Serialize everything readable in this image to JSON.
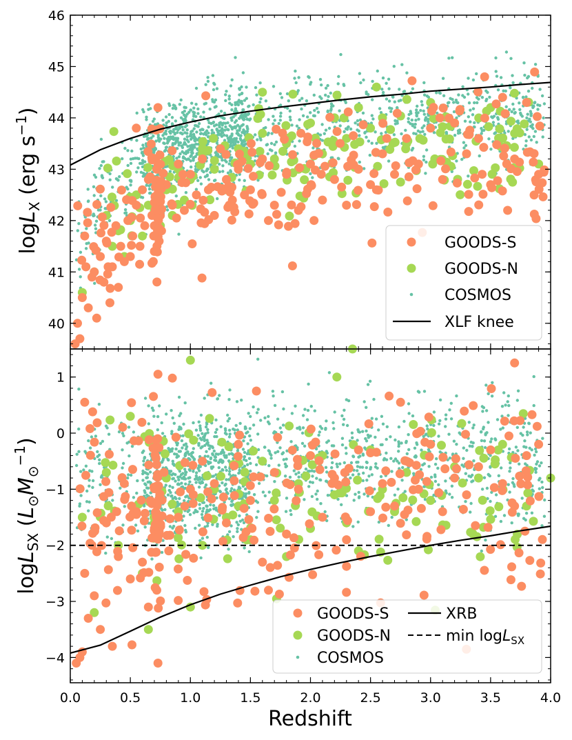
{
  "colors": {
    "goods_s": "#fc8d62",
    "goods_n": "#a6d854",
    "cosmos": "#66c2a5",
    "line": "#000000"
  },
  "shared_xlabel": "Redshift",
  "chart_data": [
    {
      "type": "scatter",
      "panel": "top",
      "ylabel_text": "log",
      "ylabel_italic": "L",
      "ylabel_sub": "X",
      "ylabel_units": " (erg s",
      "ylabel_units_sup": "−1",
      "ylabel_units_end": ")",
      "xlim": [
        0.0,
        4.0
      ],
      "ylim": [
        39.5,
        46.0
      ],
      "xticks": [
        "0.0",
        "0.5",
        "1.0",
        "1.5",
        "2.0",
        "2.5",
        "3.0",
        "3.5",
        "4.0"
      ],
      "yticks": [
        "40",
        "41",
        "42",
        "43",
        "44",
        "45",
        "46"
      ],
      "legend_position": "lower right",
      "legend": [
        "GOODS-S",
        "GOODS-N",
        "COSMOS",
        "XLF knee"
      ],
      "series": [
        {
          "name": "GOODS-S",
          "marker": "large-dot",
          "x": [
            0.04,
            0.06,
            0.08,
            0.1,
            0.13,
            0.15,
            0.18,
            0.2,
            0.22,
            0.25,
            0.28,
            0.3,
            0.33,
            0.35,
            0.38,
            0.4,
            0.42,
            0.45,
            0.48,
            0.5,
            0.52,
            0.55,
            0.58,
            0.6,
            0.62,
            0.65,
            0.68,
            0.7,
            0.72,
            0.74,
            0.76,
            0.8,
            0.85,
            0.9,
            0.95,
            1.0,
            1.05,
            1.1,
            1.15,
            1.2,
            1.25,
            1.3,
            1.35,
            1.4,
            1.5,
            1.6,
            1.7,
            1.8,
            1.9,
            2.0,
            2.1,
            2.2,
            2.3,
            2.4,
            2.5,
            2.6,
            2.7,
            2.8,
            2.9,
            3.0,
            3.1,
            3.2,
            3.3,
            3.4,
            3.5,
            3.6,
            3.7,
            3.8,
            3.9,
            0.73,
            0.7,
            0.72,
            0.74,
            0.75,
            1.45,
            1.65,
            2.55,
            3.45,
            0.55,
            0.12
          ],
          "y": [
            39.6,
            40.0,
            39.7,
            40.5,
            41.1,
            40.3,
            40.9,
            41.0,
            40.1,
            41.3,
            40.8,
            41.6,
            40.4,
            41.1,
            41.9,
            40.7,
            41.5,
            41.2,
            42.0,
            41.3,
            41.7,
            42.3,
            41.5,
            42.6,
            41.9,
            42.8,
            42.1,
            41.4,
            43.0,
            42.3,
            41.8,
            42.7,
            42.3,
            43.1,
            42.2,
            42.9,
            42.5,
            43.2,
            42.6,
            42.1,
            43.4,
            42.8,
            42.4,
            43.0,
            42.6,
            43.2,
            42.3,
            42.9,
            42.2,
            43.1,
            42.4,
            42.8,
            42.3,
            43.0,
            42.7,
            43.3,
            42.9,
            43.6,
            43.1,
            43.8,
            42.8,
            43.9,
            43.3,
            43.6,
            42.7,
            44.4,
            43.2,
            44.3,
            42.9,
            44.2,
            41.9,
            41.4,
            41.6,
            42.1,
            42.5,
            42.0,
            42.6,
            44.8,
            43.8,
            41.7
          ]
        },
        {
          "name": "GOODS-N",
          "marker": "large-dot",
          "x": [
            0.1,
            0.2,
            0.3,
            0.35,
            0.4,
            0.45,
            0.5,
            0.55,
            0.6,
            0.65,
            0.7,
            0.75,
            0.8,
            0.85,
            0.9,
            0.95,
            1.0,
            1.1,
            1.2,
            1.3,
            1.4,
            1.5,
            1.6,
            1.7,
            1.8,
            1.9,
            2.0,
            2.1,
            2.2,
            2.3,
            2.4,
            2.5,
            2.6,
            2.8,
            3.0,
            3.2,
            3.5,
            3.7,
            3.9,
            1.6,
            2.55
          ],
          "y": [
            40.6,
            41.0,
            42.1,
            41.5,
            41.8,
            41.3,
            42.0,
            42.5,
            41.7,
            42.3,
            42.2,
            41.9,
            42.6,
            42.1,
            43.0,
            42.4,
            42.8,
            43.3,
            43.0,
            42.6,
            43.4,
            43.1,
            43.7,
            43.2,
            43.5,
            43.0,
            43.9,
            43.3,
            44.0,
            43.6,
            44.2,
            43.8,
            44.0,
            43.5,
            44.3,
            43.9,
            44.2,
            43.7,
            43.1,
            44.5,
            44.6
          ]
        },
        {
          "name": "COSMOS",
          "marker": "small-dot",
          "x_range": [
            0.0,
            4.0
          ],
          "y_range_note": "dense cloud mostly between 42 and 45 below/around XLF knee"
        }
      ],
      "line": {
        "name": "XLF knee",
        "style": "solid",
        "x": [
          0.0,
          0.25,
          0.5,
          0.75,
          1.0,
          1.25,
          1.5,
          1.75,
          2.0,
          2.25,
          2.5,
          2.75,
          3.0,
          3.25,
          3.5,
          3.75,
          4.0
        ],
        "y": [
          43.08,
          43.38,
          43.6,
          43.78,
          43.92,
          44.04,
          44.13,
          44.21,
          44.28,
          44.35,
          44.41,
          44.46,
          44.52,
          44.56,
          44.6,
          44.65,
          44.69
        ]
      }
    },
    {
      "type": "scatter",
      "panel": "bottom",
      "ylabel_text": "log",
      "ylabel_italic": "L",
      "ylabel_sub": "SX",
      "ylabel_units": " (",
      "ylabel_units_italic": "L",
      "ylabel_units_sub": "⊙",
      "ylabel_units_italic2": "M",
      "ylabel_units_sub2": "⊙",
      "ylabel_units_sup2": "−1",
      "ylabel_units_end": ")",
      "xlabel": "Redshift",
      "xlim": [
        0.0,
        4.0
      ],
      "ylim": [
        -4.45,
        1.5
      ],
      "xticks": [
        "0.0",
        "0.5",
        "1.0",
        "1.5",
        "2.0",
        "2.5",
        "3.0",
        "3.5",
        "4.0"
      ],
      "yticks": [
        "−4",
        "−3",
        "−2",
        "−1",
        "0",
        "1"
      ],
      "yticks_values": [
        -4,
        -3,
        -2,
        -1,
        0,
        1
      ],
      "legend_position": "lower right",
      "legend": [
        "GOODS-S",
        "GOODS-N",
        "COSMOS",
        "XRB",
        "min log"
      ],
      "legend_min_italic": "L",
      "legend_min_sub": "SX",
      "series": [
        {
          "name": "GOODS-S",
          "marker": "large-dot",
          "x": [
            0.05,
            0.08,
            0.1,
            0.12,
            0.15,
            0.18,
            0.2,
            0.25,
            0.3,
            0.35,
            0.4,
            0.45,
            0.5,
            0.55,
            0.6,
            0.65,
            0.7,
            0.72,
            0.74,
            0.78,
            0.82,
            0.9,
            1.0,
            1.1,
            1.2,
            1.3,
            1.4,
            1.5,
            1.6,
            1.7,
            1.8,
            1.9,
            2.0,
            2.1,
            2.2,
            2.3,
            2.4,
            2.5,
            2.6,
            2.7,
            2.8,
            2.9,
            3.0,
            3.1,
            3.2,
            3.3,
            3.4,
            3.5,
            3.6,
            3.7,
            3.8,
            3.9,
            0.73,
            0.85,
            1.55,
            1.65,
            0.73,
            0.12,
            2.75,
            3.7
          ],
          "y": [
            -4.1,
            -4.0,
            -3.9,
            -2.5,
            -3.3,
            -2.0,
            -2.9,
            -3.5,
            -1.6,
            -3.8,
            -2.2,
            -0.9,
            -2.6,
            -1.4,
            -2.3,
            -3.1,
            -1.7,
            -2.8,
            -1.2,
            -0.7,
            -2.1,
            -1.5,
            -1.0,
            -0.5,
            -0.9,
            -1.6,
            -0.2,
            -1.2,
            -2.3,
            -0.7,
            -1.8,
            -1.0,
            -0.4,
            -1.5,
            -0.8,
            -1.9,
            -0.3,
            -1.4,
            -0.9,
            -1.3,
            -0.5,
            -1.0,
            -0.2,
            -1.4,
            -0.8,
            -1.1,
            -0.6,
            -0.3,
            -0.9,
            -1.3,
            -0.4,
            -0.2,
            1.05,
            0.98,
            0.75,
            -2.8,
            -4.1,
            0.55,
            0.55,
            1.25
          ]
        },
        {
          "name": "GOODS-N",
          "marker": "large-dot",
          "x": [
            0.1,
            0.2,
            0.3,
            0.4,
            0.5,
            0.6,
            0.65,
            0.7,
            0.8,
            0.9,
            1.0,
            1.1,
            1.2,
            1.3,
            1.4,
            1.5,
            1.6,
            1.7,
            1.8,
            1.9,
            2.0,
            2.1,
            2.2,
            2.3,
            2.4,
            2.5,
            2.6,
            2.7,
            2.8,
            3.0,
            3.2,
            3.4,
            3.6,
            3.8,
            4.0,
            1.0,
            2.22,
            2.35
          ],
          "y": [
            -1.5,
            -3.2,
            -0.7,
            -2.0,
            0.3,
            -2.5,
            -3.5,
            -1.6,
            -0.8,
            -1.4,
            -3.1,
            -2.0,
            -1.0,
            -1.5,
            -1.3,
            -1.9,
            -0.5,
            -1.2,
            -2.2,
            -0.9,
            -1.7,
            -0.4,
            -1.1,
            -1.6,
            -2.1,
            -0.3,
            -1.0,
            -1.4,
            -0.7,
            -1.2,
            -0.6,
            -0.8,
            -0.2,
            -1.3,
            -0.8,
            1.3,
            1.0,
            1.5
          ]
        },
        {
          "name": "COSMOS",
          "marker": "small-dot",
          "x_range": [
            0.0,
            4.0
          ],
          "y_range_note": "dense cloud mostly between -2 and 0.5"
        }
      ],
      "lines": [
        {
          "name": "XRB",
          "style": "solid",
          "x": [
            0.0,
            0.25,
            0.5,
            0.75,
            1.0,
            1.25,
            1.5,
            1.75,
            2.0,
            2.25,
            2.5,
            2.75,
            3.0,
            3.25,
            3.5,
            3.75,
            4.0
          ],
          "y": [
            -3.92,
            -3.78,
            -3.53,
            -3.28,
            -3.06,
            -2.87,
            -2.71,
            -2.56,
            -2.43,
            -2.31,
            -2.2,
            -2.1,
            -2.0,
            -1.91,
            -1.83,
            -1.74,
            -1.66
          ]
        },
        {
          "name": "min logLSX",
          "style": "dashed",
          "x": [
            0.0,
            4.0
          ],
          "y": [
            -2.0,
            -2.0
          ]
        }
      ]
    }
  ]
}
